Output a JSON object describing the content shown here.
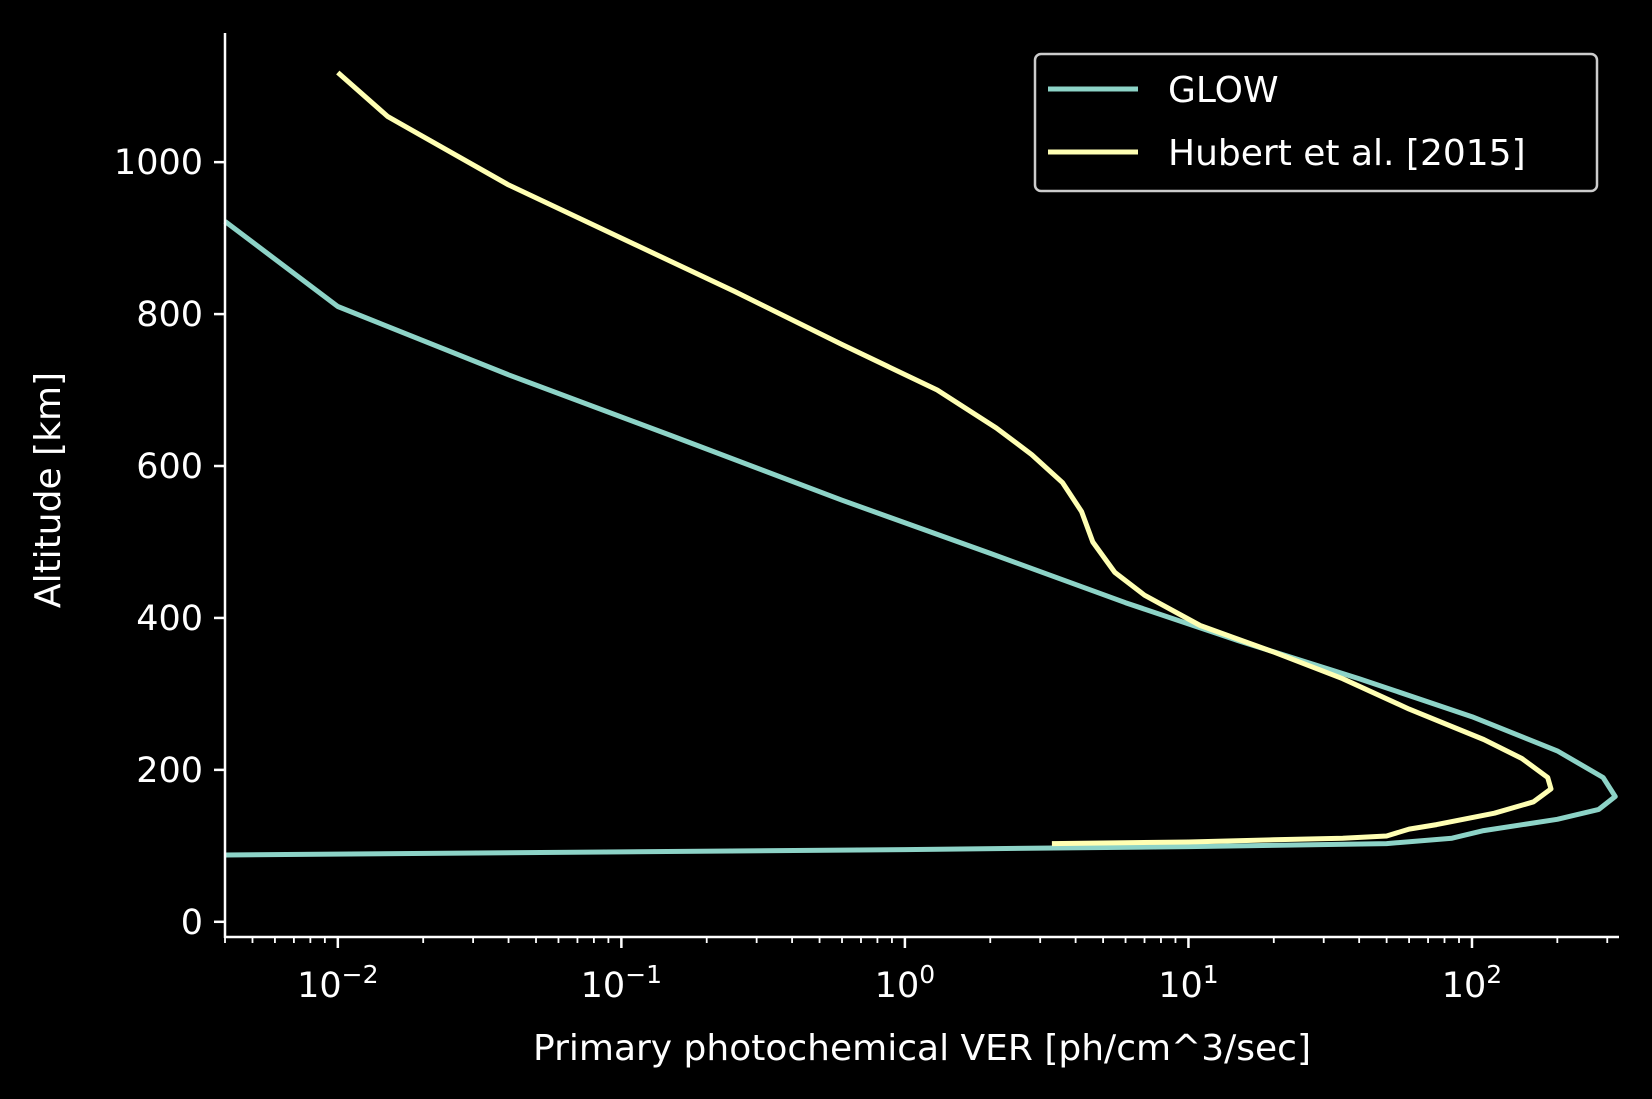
{
  "chart_data": {
    "type": "line",
    "title": "",
    "xlabel": "Primary photochemical VER [ph/cm^3/sec]",
    "ylabel": "Altitude [km]",
    "xscale": "log",
    "xlim": [
      0.004,
      330
    ],
    "ylim": [
      -20,
      1170
    ],
    "grid": false,
    "legend_position": "top-right",
    "x_ticks": [
      {
        "value": 0.01,
        "base": "10",
        "exp": "−2"
      },
      {
        "value": 0.1,
        "base": "10",
        "exp": "−1"
      },
      {
        "value": 1,
        "base": "10",
        "exp": "0"
      },
      {
        "value": 10,
        "base": "10",
        "exp": "1"
      },
      {
        "value": 100,
        "base": "10",
        "exp": "2"
      }
    ],
    "y_ticks": [
      "0",
      "200",
      "400",
      "600",
      "800",
      "1000"
    ],
    "series": [
      {
        "name": "GLOW",
        "color": "#8dd3c7",
        "points": [
          [
            0.004,
            88
          ],
          [
            0.1,
            92
          ],
          [
            1,
            95
          ],
          [
            10,
            99
          ],
          [
            50,
            103
          ],
          [
            85,
            110
          ],
          [
            110,
            120
          ],
          [
            200,
            135
          ],
          [
            280,
            148
          ],
          [
            320,
            165
          ],
          [
            290,
            190
          ],
          [
            200,
            225
          ],
          [
            100,
            270
          ],
          [
            40,
            320
          ],
          [
            15,
            370
          ],
          [
            6,
            420
          ],
          [
            2,
            485
          ],
          [
            0.6,
            555
          ],
          [
            0.15,
            640
          ],
          [
            0.04,
            720
          ],
          [
            0.01,
            810
          ],
          [
            0.004,
            922
          ]
        ]
      },
      {
        "name": "Hubert et al. [2015]",
        "color": "#ffffb3",
        "points": [
          [
            3.3,
            103
          ],
          [
            10,
            105
          ],
          [
            20,
            108
          ],
          [
            35,
            110
          ],
          [
            50,
            113
          ],
          [
            60,
            122
          ],
          [
            75,
            128
          ],
          [
            120,
            143
          ],
          [
            165,
            158
          ],
          [
            190,
            175
          ],
          [
            185,
            190
          ],
          [
            150,
            215
          ],
          [
            110,
            240
          ],
          [
            60,
            280
          ],
          [
            35,
            320
          ],
          [
            20,
            355
          ],
          [
            11,
            390
          ],
          [
            7,
            430
          ],
          [
            5.5,
            460
          ],
          [
            4.6,
            500
          ],
          [
            4.2,
            540
          ],
          [
            3.6,
            578
          ],
          [
            2.8,
            615
          ],
          [
            2.1,
            650
          ],
          [
            1.3,
            700
          ],
          [
            0.6,
            760
          ],
          [
            0.25,
            830
          ],
          [
            0.1,
            900
          ],
          [
            0.04,
            970
          ],
          [
            0.015,
            1060
          ],
          [
            0.01,
            1118
          ]
        ]
      }
    ]
  }
}
